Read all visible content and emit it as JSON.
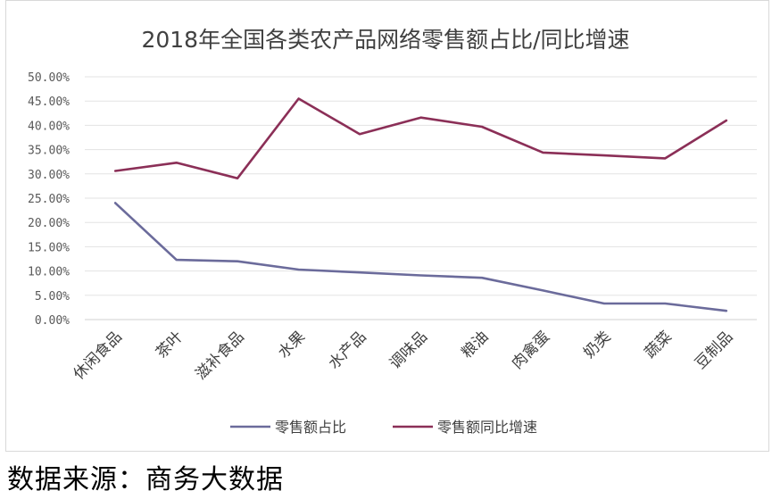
{
  "chart_data": {
    "type": "line",
    "title": "2018年全国各类农产品网络零售额占比/同比增速",
    "categories": [
      "休闲食品",
      "茶叶",
      "滋补食品",
      "水果",
      "水产品",
      "调味品",
      "粮油",
      "肉禽蛋",
      "奶类",
      "蔬菜",
      "豆制品"
    ],
    "series": [
      {
        "name": "零售额占比",
        "color": "#6b6b9b",
        "values": [
          24.0,
          12.3,
          12.0,
          10.3,
          9.7,
          9.1,
          8.6,
          6.0,
          3.3,
          3.3,
          1.8
        ]
      },
      {
        "name": "零售额同比增速",
        "color": "#8b2f57",
        "values": [
          30.6,
          32.3,
          29.1,
          45.5,
          38.2,
          41.6,
          39.7,
          34.4,
          33.8,
          33.2,
          41.0
        ]
      }
    ],
    "ylim": [
      0,
      50
    ],
    "yticks": [
      "0.00%",
      "5.00%",
      "10.00%",
      "15.00%",
      "20.00%",
      "25.00%",
      "30.00%",
      "35.00%",
      "40.00%",
      "45.00%",
      "50.00%"
    ],
    "grid": true,
    "legend_position": "bottom"
  },
  "source_text": "数据来源：商务大数据"
}
